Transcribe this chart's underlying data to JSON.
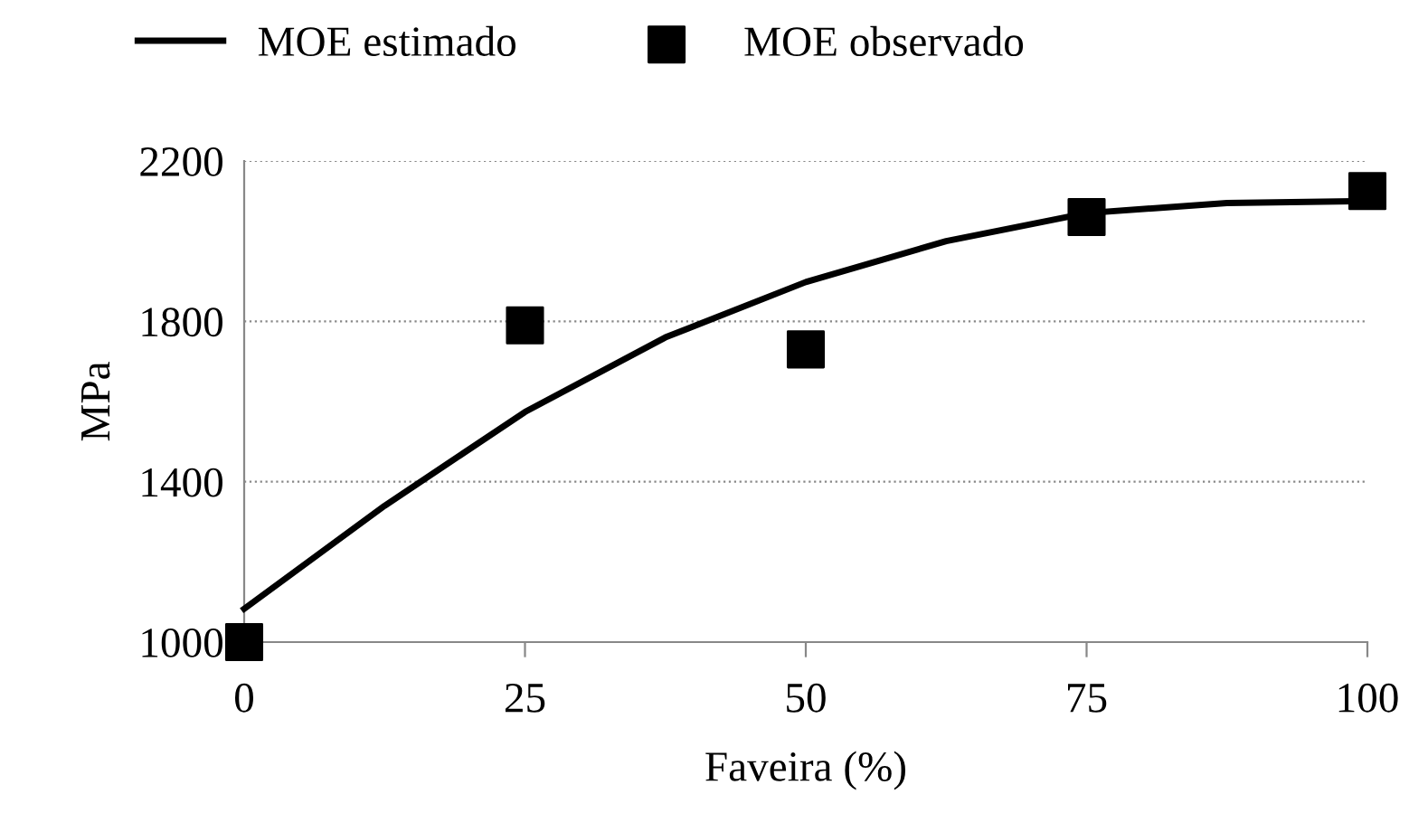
{
  "chart_data": {
    "type": "line",
    "xlabel": "Faveira (%)",
    "ylabel": "MPa",
    "series": [
      {
        "name": "MOE estimado",
        "color": "#000000",
        "marker": "none",
        "line_style": "solid",
        "x": [
          0,
          12.5,
          25,
          37.5,
          50,
          62.5,
          75,
          87.5,
          100
        ],
        "values": [
          1083,
          1340,
          1574,
          1760,
          1898,
          2000,
          2070,
          2095,
          2100
        ]
      },
      {
        "name": "MOE observado",
        "type": "scatter",
        "color": "#000000",
        "marker": "square",
        "x": [
          0,
          25,
          50,
          75,
          100
        ],
        "values": [
          1000,
          1790,
          1730,
          2060,
          2125
        ]
      }
    ],
    "xlim": [
      0,
      100
    ],
    "xticks": [
      0,
      25,
      50,
      75,
      100
    ],
    "ylim": [
      1000,
      2200
    ],
    "yticks": [
      1000,
      1400,
      1800,
      2200
    ],
    "grid": "y",
    "legend": "top"
  }
}
